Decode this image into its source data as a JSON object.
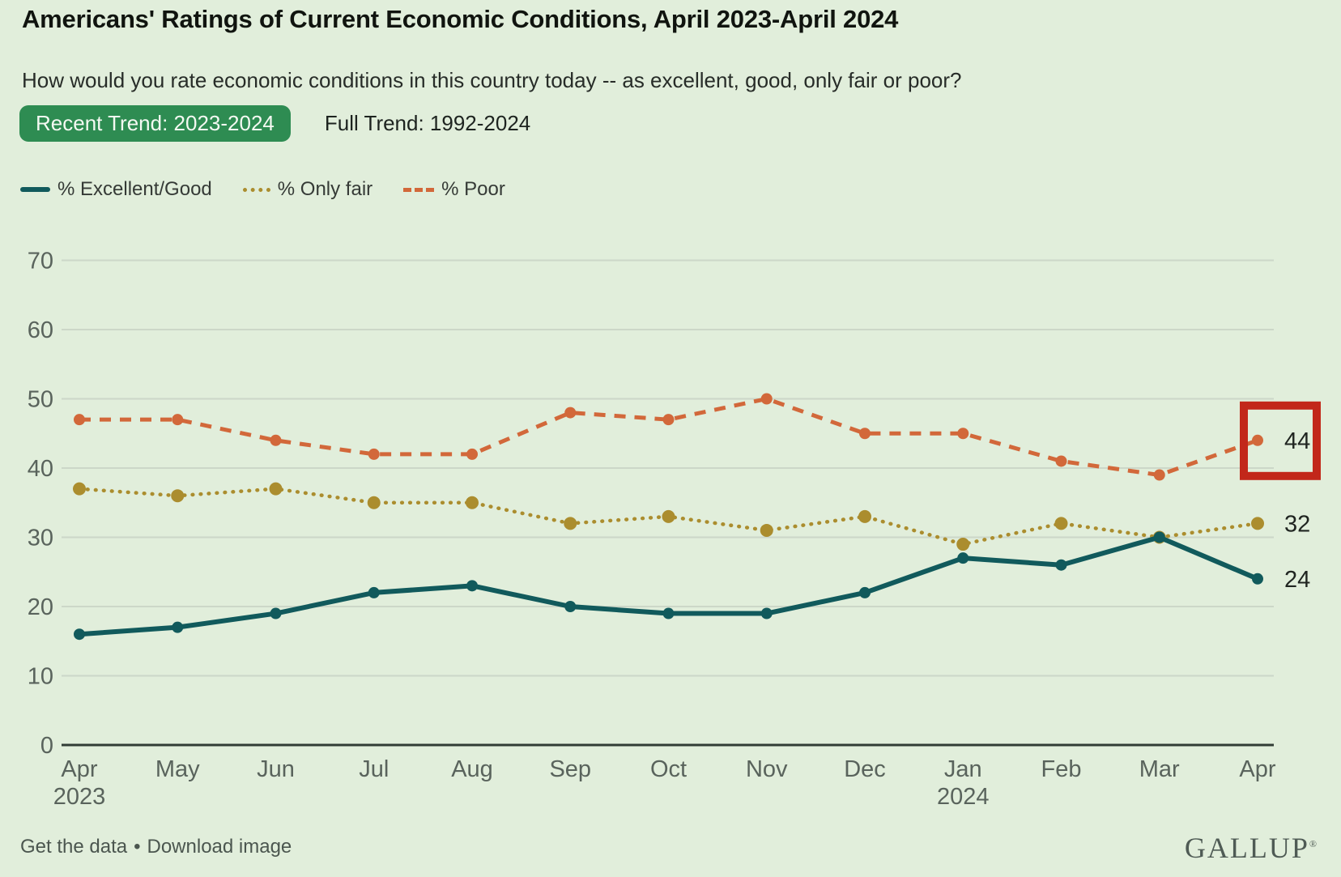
{
  "header": {
    "title": "Americans' Ratings of Current Economic Conditions, April 2023-April 2024",
    "subtitle": "How would you rate economic conditions in this country today -- as excellent, good, only fair or poor?"
  },
  "tabs": [
    {
      "label": "Recent Trend: 2023-2024",
      "active": true
    },
    {
      "label": "Full Trend: 1992-2024",
      "active": false
    }
  ],
  "legend": [
    {
      "label": "% Excellent/Good",
      "style": "solid",
      "color": "#115a5c"
    },
    {
      "label": "% Only fair",
      "style": "dotted",
      "color": "#ab8d2e"
    },
    {
      "label": "% Poor",
      "style": "dashed",
      "color": "#d2683a"
    }
  ],
  "chart_data": {
    "type": "line",
    "categories": [
      "Apr",
      "May",
      "Jun",
      "Jul",
      "Aug",
      "Sep",
      "Oct",
      "Nov",
      "Dec",
      "Jan",
      "Feb",
      "Mar",
      "Apr"
    ],
    "category_sublabels": {
      "0": "2023",
      "9": "2024"
    },
    "series": [
      {
        "name": "% Excellent/Good",
        "key": "excellent-good",
        "color": "#115a5c",
        "style": "solid",
        "values": [
          16,
          17,
          19,
          22,
          23,
          20,
          19,
          19,
          22,
          27,
          26,
          30,
          24
        ],
        "end_label": "24"
      },
      {
        "name": "% Only fair",
        "key": "only-fair",
        "color": "#ab8d2e",
        "style": "dotted",
        "values": [
          37,
          36,
          37,
          35,
          35,
          32,
          33,
          31,
          33,
          29,
          32,
          30,
          32
        ],
        "end_label": "32"
      },
      {
        "name": "% Poor",
        "key": "poor",
        "color": "#d2683a",
        "style": "dashed",
        "values": [
          47,
          47,
          44,
          42,
          42,
          48,
          47,
          50,
          45,
          45,
          41,
          39,
          44
        ],
        "end_label": "44"
      }
    ],
    "yticks": [
      0,
      10,
      20,
      30,
      40,
      50,
      60,
      70
    ],
    "ylim": [
      0,
      70
    ],
    "grid": true,
    "legend_position": "top-left",
    "annotation": {
      "type": "highlight-box",
      "series": "% Poor",
      "point": "Apr 2024",
      "value": 44,
      "color": "#c2271a"
    },
    "colors": {
      "grid": "#ccd7c8",
      "axis": "#313c35",
      "tick_label": "#59635c",
      "end_label": "#1f2420"
    }
  },
  "footer": {
    "get_data": "Get the data",
    "separator": "•",
    "download": "Download image",
    "logo": "GALLUP",
    "registered": "®"
  }
}
